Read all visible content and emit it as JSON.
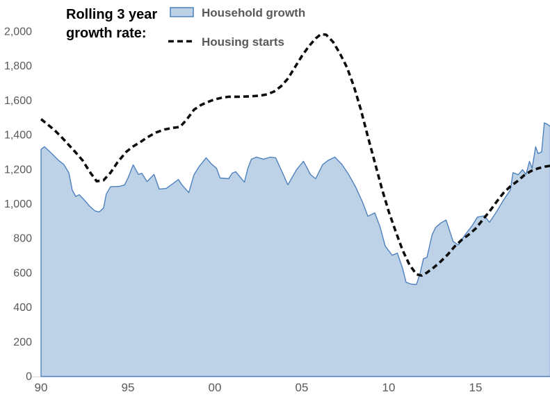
{
  "title": {
    "line1": "Rolling 3 year",
    "line2": "growth rate:"
  },
  "legend": {
    "household": {
      "label": "Household growth",
      "swatch": "area"
    },
    "housing": {
      "label": "Housing starts",
      "swatch": "dashed-line"
    }
  },
  "colors": {
    "area_fill": "#bdd1e7",
    "area_stroke": "#4f81bd",
    "dashed_line": "#0d0d0d",
    "axis_text": "#595959",
    "axis_line": "#d9d9d9",
    "title_text": "#000000",
    "background": "#ffffff"
  },
  "chart_data": {
    "type": "area",
    "title": "Rolling 3 year growth rate:",
    "xlabel": "",
    "ylabel": "",
    "grid": false,
    "legend_position": "top",
    "x_axis": {
      "tick_labels": [
        "90",
        "95",
        "00",
        "05",
        "10",
        "15"
      ],
      "tick_years": [
        1990,
        1995,
        2000,
        2005,
        2010,
        2015
      ],
      "range_years": [
        1990,
        2019.3
      ]
    },
    "y_axis": {
      "tick_labels": [
        "0",
        "200",
        "400",
        "600",
        "800",
        "1,000",
        "1,200",
        "1,400",
        "1,600",
        "1,800",
        "2,000"
      ],
      "tick_values": [
        0,
        200,
        400,
        600,
        800,
        1000,
        1200,
        1400,
        1600,
        1800,
        2000
      ],
      "range": [
        0,
        2000
      ]
    },
    "series": [
      {
        "name": "Household growth",
        "type": "area",
        "points": [
          [
            1990.0,
            1315
          ],
          [
            1990.2,
            1330
          ],
          [
            1990.6,
            1292
          ],
          [
            1991.0,
            1252
          ],
          [
            1991.3,
            1228
          ],
          [
            1991.6,
            1180
          ],
          [
            1991.8,
            1078
          ],
          [
            1992.0,
            1042
          ],
          [
            1992.2,
            1052
          ],
          [
            1992.5,
            1020
          ],
          [
            1992.8,
            985
          ],
          [
            1993.1,
            958
          ],
          [
            1993.35,
            952
          ],
          [
            1993.6,
            975
          ],
          [
            1993.75,
            1055
          ],
          [
            1994.0,
            1098
          ],
          [
            1994.5,
            1100
          ],
          [
            1994.8,
            1108
          ],
          [
            1995.0,
            1148
          ],
          [
            1995.3,
            1225
          ],
          [
            1995.6,
            1170
          ],
          [
            1995.8,
            1176
          ],
          [
            1996.1,
            1128
          ],
          [
            1996.5,
            1170
          ],
          [
            1996.8,
            1085
          ],
          [
            1997.2,
            1088
          ],
          [
            1997.6,
            1117
          ],
          [
            1997.9,
            1140
          ],
          [
            1998.1,
            1110
          ],
          [
            1998.5,
            1064
          ],
          [
            1998.8,
            1168
          ],
          [
            1999.1,
            1216
          ],
          [
            1999.5,
            1266
          ],
          [
            1999.8,
            1230
          ],
          [
            2000.1,
            1205
          ],
          [
            2000.3,
            1149
          ],
          [
            2000.8,
            1145
          ],
          [
            2001.0,
            1177
          ],
          [
            2001.2,
            1185
          ],
          [
            2001.5,
            1149
          ],
          [
            2001.7,
            1125
          ],
          [
            2001.9,
            1205
          ],
          [
            2002.1,
            1258
          ],
          [
            2002.4,
            1270
          ],
          [
            2002.8,
            1258
          ],
          [
            2003.2,
            1270
          ],
          [
            2003.5,
            1266
          ],
          [
            2003.9,
            1177
          ],
          [
            2004.2,
            1109
          ],
          [
            2004.7,
            1197
          ],
          [
            2005.1,
            1246
          ],
          [
            2005.5,
            1169
          ],
          [
            2005.8,
            1145
          ],
          [
            2006.2,
            1226
          ],
          [
            2006.5,
            1250
          ],
          [
            2006.9,
            1270
          ],
          [
            2007.3,
            1229
          ],
          [
            2007.7,
            1169
          ],
          [
            2008.1,
            1096
          ],
          [
            2008.5,
            1008
          ],
          [
            2008.8,
            927
          ],
          [
            2009.2,
            947
          ],
          [
            2009.5,
            867
          ],
          [
            2009.8,
            754
          ],
          [
            2010.2,
            701
          ],
          [
            2010.5,
            713
          ],
          [
            2010.8,
            625
          ],
          [
            2011.0,
            544
          ],
          [
            2011.3,
            533
          ],
          [
            2011.6,
            532
          ],
          [
            2011.8,
            593
          ],
          [
            2012.0,
            681
          ],
          [
            2012.2,
            688
          ],
          [
            2012.5,
            820
          ],
          [
            2012.7,
            862
          ],
          [
            2013.0,
            888
          ],
          [
            2013.3,
            905
          ],
          [
            2013.55,
            830
          ],
          [
            2013.7,
            782
          ],
          [
            2014.0,
            760
          ],
          [
            2014.4,
            820
          ],
          [
            2014.8,
            872
          ],
          [
            2015.1,
            922
          ],
          [
            2015.5,
            930
          ],
          [
            2015.8,
            892
          ],
          [
            2016.2,
            952
          ],
          [
            2016.6,
            1020
          ],
          [
            2017.0,
            1080
          ],
          [
            2017.15,
            1180
          ],
          [
            2017.45,
            1168
          ],
          [
            2017.7,
            1197
          ],
          [
            2017.9,
            1170
          ],
          [
            2018.1,
            1245
          ],
          [
            2018.25,
            1205
          ],
          [
            2018.45,
            1330
          ],
          [
            2018.6,
            1290
          ],
          [
            2018.8,
            1300
          ],
          [
            2018.95,
            1468
          ],
          [
            2019.1,
            1462
          ],
          [
            2019.3,
            1448
          ]
        ]
      },
      {
        "name": "Housing starts",
        "type": "line",
        "dashed": true,
        "points": [
          [
            1990.0,
            1490
          ],
          [
            1990.4,
            1458
          ],
          [
            1990.8,
            1424
          ],
          [
            1991.2,
            1384
          ],
          [
            1991.6,
            1340
          ],
          [
            1992.0,
            1296
          ],
          [
            1992.4,
            1250
          ],
          [
            1992.8,
            1185
          ],
          [
            1993.2,
            1130
          ],
          [
            1993.6,
            1136
          ],
          [
            1994.0,
            1180
          ],
          [
            1994.4,
            1240
          ],
          [
            1994.9,
            1300
          ],
          [
            1995.3,
            1332
          ],
          [
            1995.7,
            1356
          ],
          [
            1996.1,
            1384
          ],
          [
            1996.6,
            1412
          ],
          [
            1997.1,
            1430
          ],
          [
            1997.6,
            1440
          ],
          [
            1998.0,
            1445
          ],
          [
            1998.4,
            1490
          ],
          [
            1998.8,
            1545
          ],
          [
            1999.2,
            1572
          ],
          [
            1999.6,
            1590
          ],
          [
            2000.0,
            1605
          ],
          [
            2000.4,
            1614
          ],
          [
            2000.8,
            1620
          ],
          [
            2001.4,
            1620
          ],
          [
            2002.0,
            1622
          ],
          [
            2002.6,
            1626
          ],
          [
            2003.0,
            1634
          ],
          [
            2003.4,
            1650
          ],
          [
            2003.8,
            1680
          ],
          [
            2004.2,
            1725
          ],
          [
            2004.6,
            1790
          ],
          [
            2005.0,
            1855
          ],
          [
            2005.4,
            1912
          ],
          [
            2005.8,
            1958
          ],
          [
            2006.1,
            1983
          ],
          [
            2006.4,
            1980
          ],
          [
            2006.8,
            1938
          ],
          [
            2007.2,
            1870
          ],
          [
            2007.6,
            1790
          ],
          [
            2008.0,
            1680
          ],
          [
            2008.4,
            1545
          ],
          [
            2008.8,
            1390
          ],
          [
            2009.2,
            1240
          ],
          [
            2009.6,
            1090
          ],
          [
            2010.0,
            955
          ],
          [
            2010.4,
            840
          ],
          [
            2010.8,
            730
          ],
          [
            2011.2,
            645
          ],
          [
            2011.6,
            590
          ],
          [
            2011.9,
            583
          ],
          [
            2012.2,
            600
          ],
          [
            2012.6,
            630
          ],
          [
            2013.0,
            665
          ],
          [
            2013.4,
            705
          ],
          [
            2013.8,
            752
          ],
          [
            2014.2,
            790
          ],
          [
            2014.6,
            820
          ],
          [
            2015.0,
            855
          ],
          [
            2015.4,
            905
          ],
          [
            2015.8,
            955
          ],
          [
            2016.2,
            1010
          ],
          [
            2016.6,
            1062
          ],
          [
            2017.0,
            1100
          ],
          [
            2017.4,
            1130
          ],
          [
            2017.8,
            1165
          ],
          [
            2018.2,
            1190
          ],
          [
            2018.6,
            1205
          ],
          [
            2019.0,
            1215
          ],
          [
            2019.3,
            1220
          ]
        ]
      }
    ]
  }
}
